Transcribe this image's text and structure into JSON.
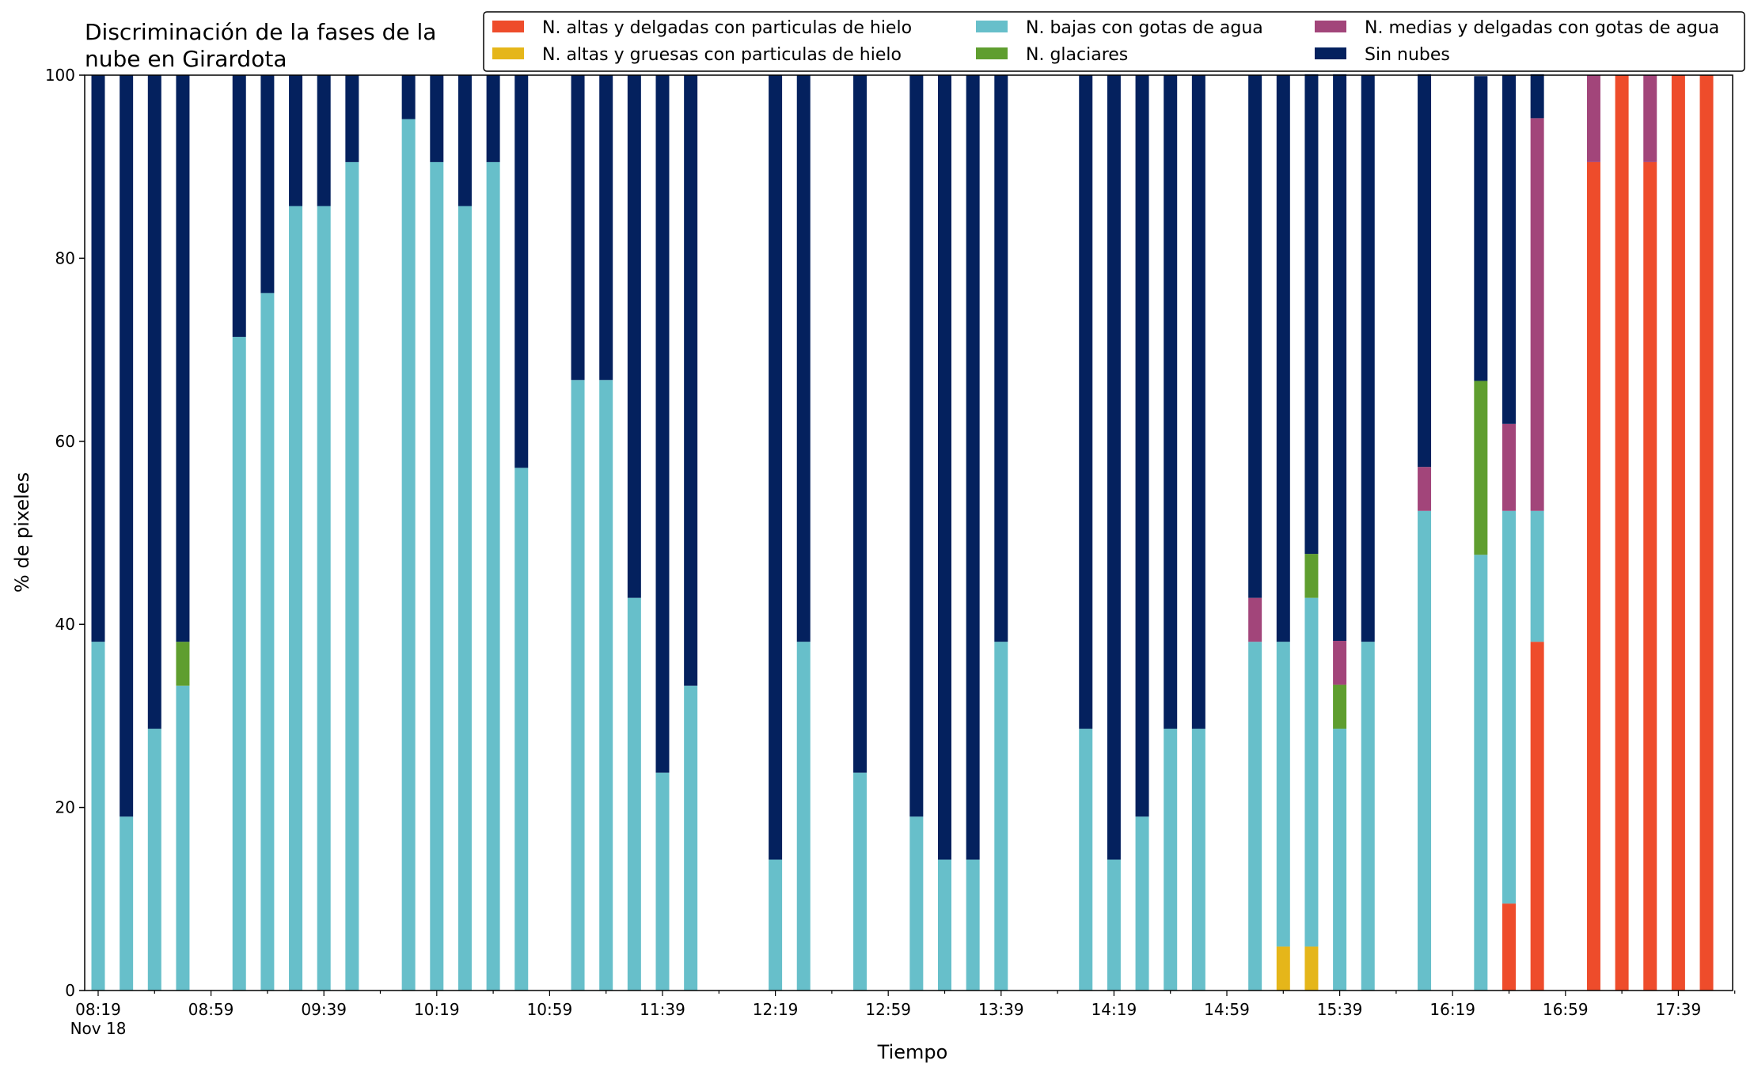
{
  "chart_data": {
    "type": "bar",
    "stacked": true,
    "title_lines": [
      "Discriminación de la fases de la",
      "nube en Girardota"
    ],
    "xlabel": "Tiempo",
    "ylabel": "% de pixeles",
    "ylim": [
      0,
      100
    ],
    "yticks": [
      0,
      20,
      40,
      60,
      80,
      100
    ],
    "grid": false,
    "legend_position": "top-right",
    "x_start": "08:19",
    "interval_minutes": 10,
    "xtick_labels": [
      "08:19",
      "08:59",
      "09:39",
      "10:19",
      "10:59",
      "11:39",
      "12:19",
      "12:59",
      "13:39",
      "14:19",
      "14:59",
      "15:39",
      "16:19",
      "16:59",
      "17:39"
    ],
    "xtick_date": "Nov 18",
    "series": [
      {
        "name": "N. altas y delgadas con particulas de hielo",
        "color": "#ee4c2b",
        "values": [
          0,
          0,
          0,
          0,
          null,
          0,
          0,
          0,
          0,
          0,
          null,
          0,
          0,
          0,
          0,
          0,
          null,
          0,
          0,
          0,
          0,
          0,
          null,
          null,
          0,
          0,
          null,
          0,
          null,
          0,
          0,
          0,
          0,
          null,
          null,
          0,
          0,
          0,
          0,
          0,
          null,
          0,
          0,
          0,
          0,
          0,
          null,
          0,
          null,
          0,
          9.5,
          38.1,
          null,
          90.5,
          100,
          90.5,
          100,
          100
        ]
      },
      {
        "name": "N. altas y gruesas con particulas de hielo",
        "color": "#e5b61a",
        "values": [
          0,
          0,
          0,
          0,
          null,
          0,
          0,
          0,
          0,
          0,
          null,
          0,
          0,
          0,
          0,
          0,
          null,
          0,
          0,
          0,
          0,
          0,
          null,
          null,
          0,
          0,
          null,
          0,
          null,
          0,
          0,
          0,
          0,
          null,
          null,
          0,
          0,
          0,
          0,
          0,
          null,
          0,
          4.8,
          4.8,
          0,
          0,
          null,
          0,
          null,
          0,
          0,
          0,
          null,
          0,
          0,
          0,
          0,
          0
        ]
      },
      {
        "name": "N. bajas con gotas de agua",
        "color": "#67bfca",
        "values": [
          38.1,
          19.0,
          28.6,
          33.3,
          null,
          71.4,
          76.2,
          85.7,
          85.7,
          90.5,
          null,
          95.2,
          90.5,
          85.7,
          90.5,
          57.1,
          null,
          66.7,
          66.7,
          42.9,
          23.8,
          33.3,
          null,
          null,
          14.3,
          38.1,
          null,
          23.8,
          null,
          19.0,
          14.3,
          14.3,
          38.1,
          null,
          null,
          28.6,
          14.3,
          19.0,
          28.6,
          28.6,
          null,
          38.1,
          33.3,
          38.1,
          28.6,
          38.1,
          null,
          52.4,
          null,
          47.6,
          42.9,
          14.3,
          null,
          0,
          0,
          0,
          0,
          0
        ]
      },
      {
        "name": "N. glaciares",
        "color": "#5f9e2f",
        "values": [
          0,
          0,
          0,
          4.8,
          null,
          0,
          0,
          0,
          0,
          0,
          null,
          0,
          0,
          0,
          0,
          0,
          null,
          0,
          0,
          0,
          0,
          0,
          null,
          null,
          0,
          0,
          null,
          0,
          null,
          0,
          0,
          0,
          0,
          null,
          null,
          0,
          0,
          0,
          0,
          0,
          null,
          0,
          0,
          4.8,
          4.8,
          0,
          null,
          0,
          null,
          19.0,
          0,
          0,
          null,
          0,
          0,
          0,
          0,
          0
        ]
      },
      {
        "name": "N. medias y delgadas con gotas de agua",
        "color": "#a2457a",
        "values": [
          0,
          0,
          0,
          0,
          null,
          0,
          0,
          0,
          0,
          0,
          null,
          0,
          0,
          0,
          0,
          0,
          null,
          0,
          0,
          0,
          0,
          0,
          null,
          null,
          0,
          0,
          null,
          0,
          null,
          0,
          0,
          0,
          0,
          null,
          null,
          0,
          0,
          0,
          0,
          0,
          null,
          4.8,
          0,
          0,
          4.8,
          0,
          null,
          4.8,
          null,
          0,
          9.5,
          42.9,
          null,
          9.5,
          0,
          9.5,
          0,
          0
        ]
      },
      {
        "name": "Sin nubes",
        "color": "#04215e",
        "values": [
          61.9,
          81.0,
          71.4,
          61.9,
          null,
          28.6,
          23.8,
          14.3,
          14.3,
          9.5,
          null,
          4.8,
          9.5,
          14.3,
          9.5,
          42.9,
          null,
          33.3,
          33.3,
          57.1,
          76.2,
          66.7,
          null,
          null,
          85.7,
          61.9,
          null,
          76.2,
          null,
          81.0,
          85.7,
          85.7,
          61.9,
          null,
          null,
          71.4,
          85.7,
          81.0,
          71.4,
          71.4,
          null,
          57.1,
          61.9,
          52.4,
          61.9,
          61.9,
          null,
          42.9,
          null,
          33.3,
          38.1,
          4.8,
          null,
          0,
          0,
          0,
          0,
          0
        ]
      }
    ]
  }
}
